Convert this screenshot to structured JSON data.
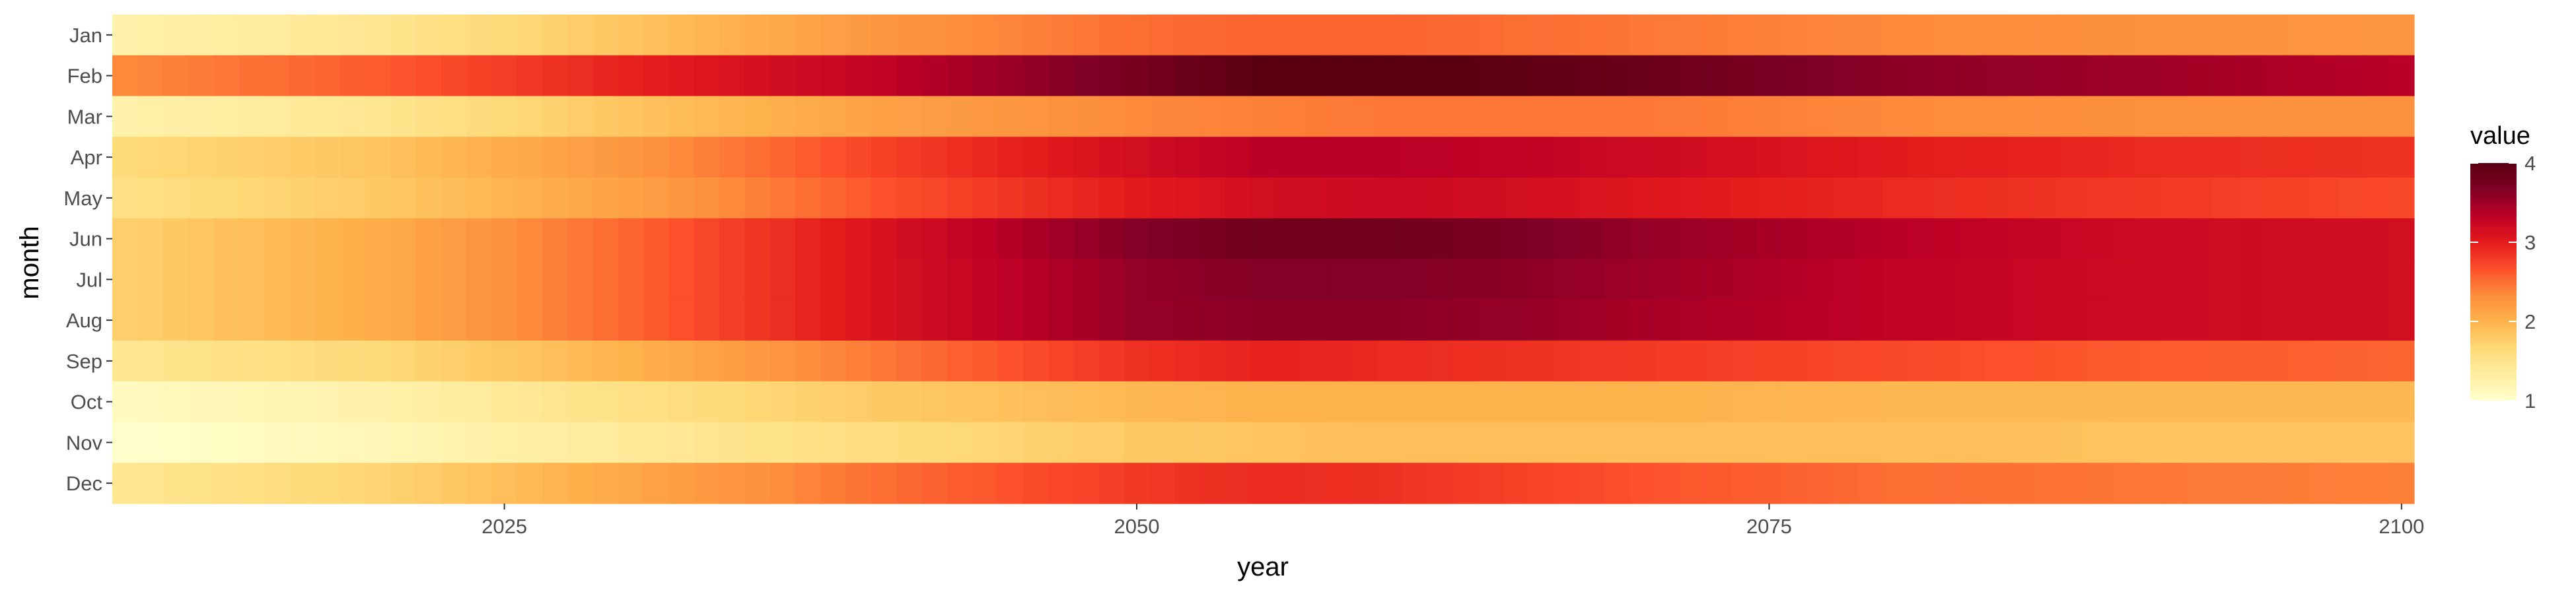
{
  "chart_data": {
    "type": "heatmap",
    "title": "",
    "xlabel": "year",
    "ylabel": "month",
    "xlim": [
      2009.5,
      2100.5
    ],
    "x_ticks": [
      2025,
      2050,
      2075,
      2100
    ],
    "x_tick_labels": [
      "2025",
      "2050",
      "2075",
      "2100"
    ],
    "x_start_year": 2010,
    "x_end_year": 2100,
    "months": [
      "Jan",
      "Feb",
      "Mar",
      "Apr",
      "May",
      "Jun",
      "Jul",
      "Aug",
      "Sep",
      "Oct",
      "Nov",
      "Dec"
    ],
    "value_profile_years": [
      2010,
      2020,
      2030,
      2040,
      2050,
      2055,
      2060,
      2065,
      2070,
      2080,
      2090,
      2100
    ],
    "value_profiles": [
      [
        1.25,
        1.45,
        1.85,
        2.25,
        2.5,
        2.55,
        2.55,
        2.5,
        2.45,
        2.35,
        2.3,
        2.25
      ],
      [
        2.35,
        2.6,
        2.95,
        3.3,
        3.75,
        4.0,
        4.05,
        3.95,
        3.85,
        3.6,
        3.5,
        3.35
      ],
      [
        1.25,
        1.45,
        1.85,
        2.15,
        2.35,
        2.4,
        2.45,
        2.45,
        2.45,
        2.35,
        2.3,
        2.3
      ],
      [
        1.65,
        1.85,
        2.25,
        2.75,
        3.15,
        3.35,
        3.35,
        3.3,
        3.2,
        3.0,
        2.9,
        2.85
      ],
      [
        1.55,
        1.8,
        2.15,
        2.65,
        3.0,
        3.15,
        3.2,
        3.15,
        3.05,
        2.9,
        2.8,
        2.7
      ],
      [
        1.75,
        2.05,
        2.55,
        3.1,
        3.65,
        3.8,
        3.8,
        3.7,
        3.55,
        3.35,
        3.2,
        3.15
      ],
      [
        1.75,
        2.05,
        2.55,
        3.1,
        3.55,
        3.65,
        3.65,
        3.6,
        3.5,
        3.3,
        3.2,
        3.15
      ],
      [
        1.75,
        2.05,
        2.55,
        3.1,
        3.55,
        3.6,
        3.6,
        3.55,
        3.45,
        3.3,
        3.2,
        3.15
      ],
      [
        1.45,
        1.65,
        2.0,
        2.45,
        2.85,
        2.95,
        2.9,
        2.85,
        2.8,
        2.7,
        2.6,
        2.55
      ],
      [
        1.1,
        1.25,
        1.55,
        1.8,
        1.95,
        2.0,
        2.0,
        2.0,
        2.0,
        1.95,
        1.95,
        1.95
      ],
      [
        1.0,
        1.15,
        1.4,
        1.6,
        1.8,
        1.85,
        1.9,
        1.9,
        1.9,
        1.9,
        1.85,
        1.85
      ],
      [
        1.45,
        1.7,
        2.1,
        2.5,
        2.8,
        2.9,
        2.85,
        2.75,
        2.65,
        2.5,
        2.45,
        2.4
      ]
    ],
    "color_scale": {
      "name": "YlOrRd",
      "min": 1,
      "max": 4,
      "stops": [
        "#ffffcc",
        "#ffeda0",
        "#fed976",
        "#feb24c",
        "#fd8d3c",
        "#fc4e2a",
        "#e31a1c",
        "#bd0026",
        "#800026",
        "#5a0010"
      ]
    },
    "legend": {
      "title": "value",
      "position": "right",
      "ticks": [
        1,
        2,
        3,
        4
      ],
      "tick_labels": [
        "1",
        "2",
        "3",
        "4"
      ]
    },
    "grid": false
  }
}
